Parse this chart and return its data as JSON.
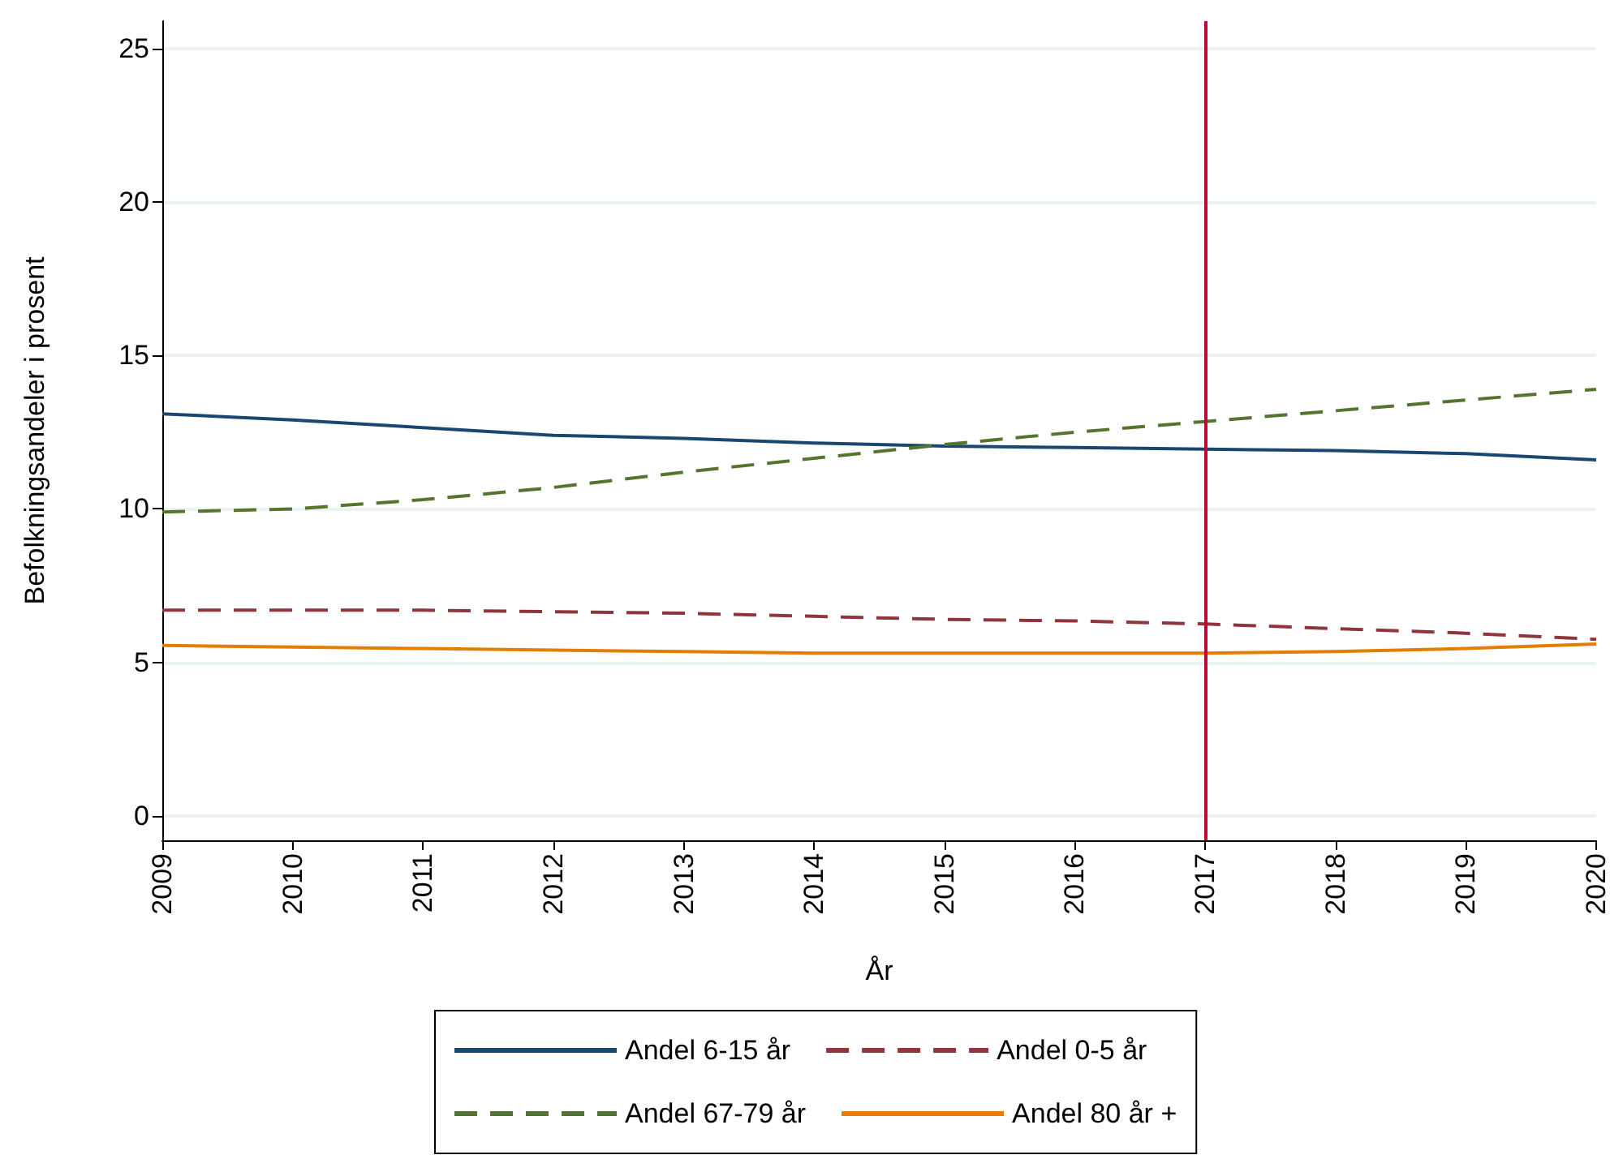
{
  "chart_data": {
    "type": "line",
    "xlabel": "År",
    "ylabel": "Befolkningsandeler i prosent",
    "x": [
      2009,
      2010,
      2011,
      2012,
      2013,
      2014,
      2015,
      2016,
      2017,
      2018,
      2019,
      2020
    ],
    "series": [
      {
        "name": "Andel 6-15 år",
        "color": "#1a476f",
        "line_style": "solid",
        "values": [
          13.1,
          12.9,
          12.65,
          12.4,
          12.3,
          12.15,
          12.05,
          12.0,
          11.95,
          11.9,
          11.8,
          11.6
        ]
      },
      {
        "name": "Andel 0-5 år",
        "color": "#90353b",
        "line_style": "dashed",
        "values": [
          6.7,
          6.7,
          6.7,
          6.65,
          6.6,
          6.5,
          6.4,
          6.35,
          6.25,
          6.1,
          5.95,
          5.75
        ]
      },
      {
        "name": "Andel 67-79 år",
        "color": "#55752f",
        "line_style": "dashed",
        "values": [
          9.9,
          10.0,
          10.3,
          10.7,
          11.2,
          11.65,
          12.1,
          12.5,
          12.85,
          13.2,
          13.55,
          13.9
        ]
      },
      {
        "name": "Andel 80 år +",
        "color": "#e37e00",
        "line_style": "solid",
        "values": [
          5.55,
          5.5,
          5.45,
          5.4,
          5.35,
          5.3,
          5.3,
          5.3,
          5.3,
          5.35,
          5.45,
          5.6
        ]
      }
    ],
    "xlim": [
      2009,
      2020
    ],
    "xticks": [
      2009,
      2010,
      2011,
      2012,
      2013,
      2014,
      2015,
      2016,
      2017,
      2018,
      2019,
      2020
    ],
    "ylim": [
      -0.8,
      25.9
    ],
    "yticks": [
      0,
      5,
      10,
      15,
      20,
      25
    ],
    "ref_lines": [
      {
        "axis": "x",
        "value": 2017,
        "color": "#c10534"
      }
    ],
    "grid": "y",
    "legend": "bottom",
    "marker": "none"
  }
}
